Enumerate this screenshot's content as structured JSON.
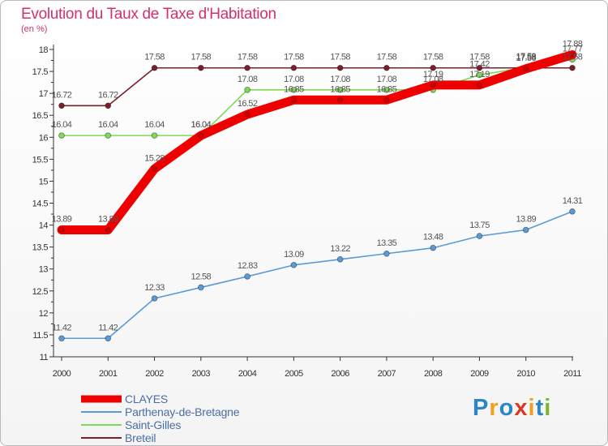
{
  "title": "Evolution du Taux de Taxe d'Habitation",
  "subtitle": "(en %)",
  "logo": {
    "text": "Proxiti",
    "letters": [
      {
        "ch": "P",
        "color": "#2a86c8"
      },
      {
        "ch": "r",
        "color": "#f0a020"
      },
      {
        "ch": "o",
        "color": "#2a86c8"
      },
      {
        "ch": "x",
        "color": "#d83a2a"
      },
      {
        "ch": "i",
        "color": "#f0a020"
      },
      {
        "ch": "t",
        "color": "#2a86c8"
      },
      {
        "ch": "i",
        "color": "#7ab52a"
      }
    ]
  },
  "chart_data": {
    "type": "line",
    "x": [
      "2000",
      "2001",
      "2002",
      "2003",
      "2004",
      "2005",
      "2006",
      "2007",
      "2008",
      "2009",
      "2010",
      "2011"
    ],
    "ylim": [
      11,
      18
    ],
    "yticks": [
      "11",
      "11.5",
      "12",
      "12.5",
      "13",
      "13.5",
      "14",
      "14.5",
      "15",
      "15.5",
      "16",
      "16.5",
      "17",
      "17.5",
      "18"
    ],
    "grid": false,
    "legend_position": "bottom-left",
    "series": [
      {
        "name": "CLAYES",
        "color": "#ee0000",
        "emphasis": true,
        "values": [
          13.89,
          13.89,
          15.28,
          16.04,
          16.52,
          16.85,
          16.85,
          16.85,
          17.19,
          17.19,
          17.56,
          17.88
        ],
        "labels": [
          "13.89",
          "13.89",
          "15.28",
          "16.04",
          "16.52",
          "16.85",
          "16.85",
          "16.85",
          "17.19",
          "17.19",
          "17.56",
          "17.88"
        ]
      },
      {
        "name": "Parthenay-de-Bretagne",
        "color": "#5b9bd5",
        "emphasis": false,
        "values": [
          11.42,
          11.42,
          12.33,
          12.58,
          12.83,
          13.09,
          13.22,
          13.35,
          13.48,
          13.75,
          13.89,
          14.31
        ],
        "labels": [
          "11.42",
          "11.42",
          "12.33",
          "12.58",
          "12.83",
          "13.09",
          "13.22",
          "13.35",
          "13.48",
          "13.75",
          "13.89",
          "14.31"
        ]
      },
      {
        "name": "Saint-Gilles",
        "color": "#7ed957",
        "emphasis": false,
        "values": [
          16.04,
          16.04,
          16.04,
          16.04,
          17.08,
          17.08,
          17.08,
          17.08,
          17.08,
          17.42,
          17.59,
          17.77
        ],
        "labels": [
          "16.04",
          "16.04",
          "16.04",
          "16.04",
          "17.08",
          "17.08",
          "17.08",
          "17.08",
          "17.08",
          "17.42",
          "17.59",
          "17.77"
        ]
      },
      {
        "name": "Breteil",
        "color": "#7a1f2b",
        "emphasis": false,
        "values": [
          16.72,
          16.72,
          17.58,
          17.58,
          17.58,
          17.58,
          17.58,
          17.58,
          17.58,
          17.58,
          17.58,
          17.58
        ],
        "labels": [
          "16.72",
          "16.72",
          "17.58",
          "17.58",
          "17.58",
          "17.58",
          "17.58",
          "17.58",
          "17.58",
          "17.58",
          "17.58",
          "17.58"
        ]
      }
    ]
  }
}
